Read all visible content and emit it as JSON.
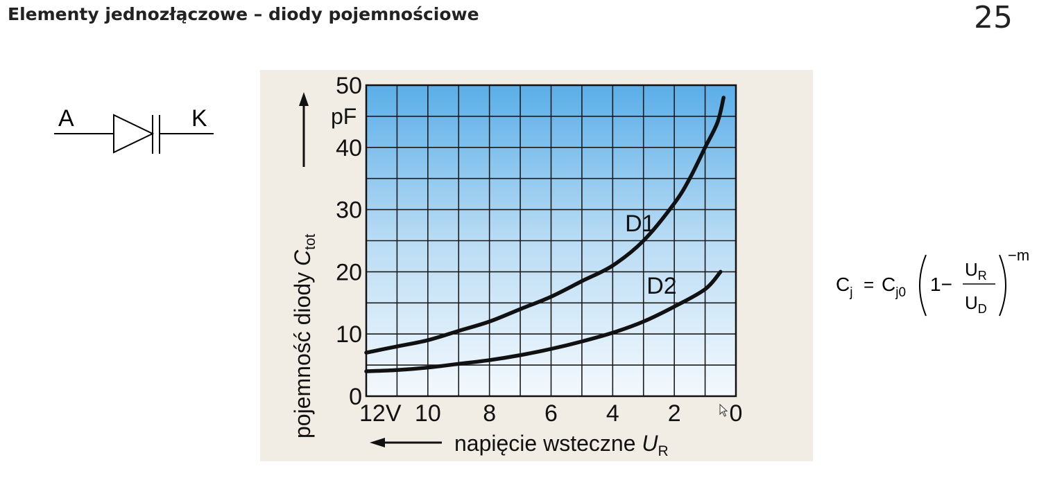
{
  "slide": {
    "title": "Elementy jednozłączowe – diody pojemnościowe",
    "page_number": "25"
  },
  "diode_symbol": {
    "anode_label": "A",
    "cathode_label": "K"
  },
  "formula": {
    "lhs": "C",
    "lhs_sub": "j",
    "equals": "=",
    "coef": "C",
    "coef_sub": "j0",
    "one_minus": "1−",
    "num": "U",
    "num_sub": "R",
    "den": "U",
    "den_sub": "D",
    "exponent": "−m"
  },
  "chart_data": {
    "type": "line",
    "ylabel_main": "pojemność diody ",
    "ylabel_var": "C",
    "ylabel_sub": "tot",
    "yunit": "pF",
    "xlabel_main": "napięcie wsteczne ",
    "xlabel_var": "U",
    "xlabel_sub": "R",
    "y_ticks": [
      "0",
      "10",
      "20",
      "30",
      "40",
      "50"
    ],
    "x_ticks": [
      {
        "value": 12,
        "label": "12V"
      },
      {
        "value": 10,
        "label": "10"
      },
      {
        "value": 8,
        "label": "8"
      },
      {
        "value": 6,
        "label": "6"
      },
      {
        "value": 4,
        "label": "4"
      },
      {
        "value": 2,
        "label": "2"
      },
      {
        "value": 0,
        "label": "0"
      }
    ],
    "xlim": [
      12,
      0
    ],
    "ylim": [
      0,
      50
    ],
    "grid": true,
    "series": [
      {
        "name": "D1",
        "x": [
          12,
          11,
          10,
          9,
          8,
          7,
          6,
          5,
          4,
          3,
          2,
          1.5,
          1,
          0.6,
          0.4
        ],
        "y": [
          7,
          8,
          9,
          10.5,
          12,
          14,
          16,
          18.5,
          21,
          25,
          31,
          35,
          40,
          44,
          48
        ]
      },
      {
        "name": "D2",
        "x": [
          12,
          11,
          10,
          9,
          8,
          7,
          6,
          5,
          4,
          3,
          2,
          1,
          0.5
        ],
        "y": [
          4,
          4.2,
          4.6,
          5.2,
          5.8,
          6.6,
          7.6,
          8.8,
          10.2,
          12,
          14.4,
          17.2,
          20
        ]
      }
    ]
  }
}
